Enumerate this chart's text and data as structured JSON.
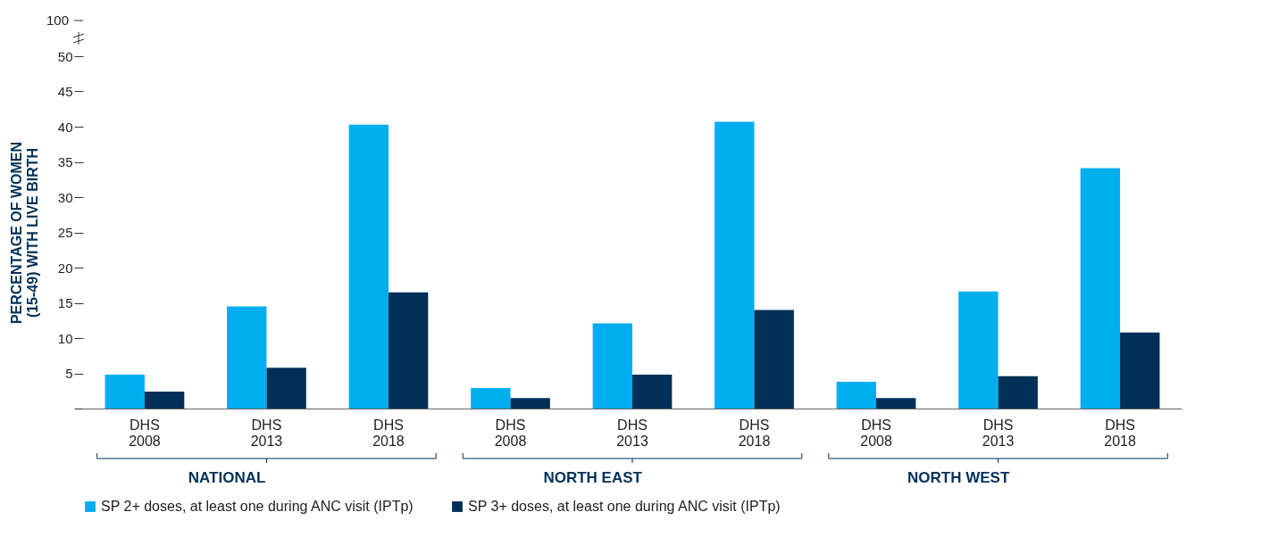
{
  "chart_data": {
    "type": "bar",
    "ylabel": "PERCENTAGE OF WOMEN (15-49) WITH LIVE BIRTH",
    "categories": [
      "DHS 2008",
      "DHS 2013",
      "DHS 2018",
      "DHS 2008",
      "DHS 2013",
      "DHS 2018",
      "DHS 2008",
      "DHS 2013",
      "DHS 2018"
    ],
    "series": [
      {
        "name": "SP 2+ doses, at least one during ANC visit (IPTp)",
        "color": "#00aeef",
        "values": [
          4.8,
          14.5,
          40.3,
          2.9,
          12.1,
          40.7,
          3.8,
          16.6,
          34.1
        ]
      },
      {
        "name": "SP 3+ doses, at least one during ANC visit (IPTp)",
        "color": "#003057",
        "values": [
          2.4,
          5.8,
          16.5,
          1.5,
          4.8,
          14.0,
          1.5,
          4.6,
          10.8
        ]
      }
    ],
    "annotations": [
      "100",
      "NATIONAL",
      "NORTH EAST",
      "NORTH WEST"
    ],
    "ylim": [
      0,
      50
    ],
    "yticks": [
      {
        "value": 0,
        "label": null
      },
      5,
      10,
      15,
      20,
      25,
      30,
      35,
      40,
      45,
      50
    ],
    "grid": false,
    "legend": "bottom"
  }
}
